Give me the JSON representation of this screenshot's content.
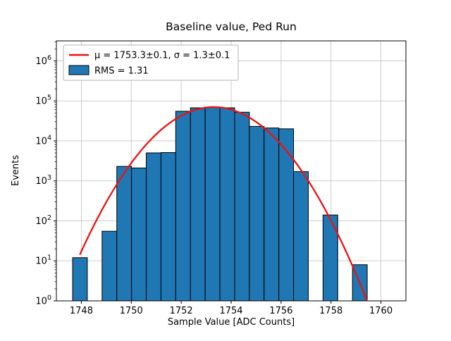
{
  "figure": {
    "title": "Baseline value, Ped Run",
    "xlabel": "Sample Value [ADC Counts]",
    "ylabel": "Events"
  },
  "chart_data": {
    "type": "bar",
    "subtype": "histogram-with-gaussian-fit",
    "title": "Baseline value, Ped Run",
    "xlabel": "Sample Value [ADC Counts]",
    "ylabel": "Events",
    "yscale": "log",
    "xlim": [
      1747.0,
      1761.0
    ],
    "ylim": [
      1,
      3162278
    ],
    "grid": true,
    "x_ticks": [
      1748,
      1750,
      1752,
      1754,
      1756,
      1758,
      1760
    ],
    "y_tick_exponents": [
      0,
      1,
      2,
      3,
      4,
      5,
      6
    ],
    "y_tick_labels": [
      "10⁰",
      "10¹",
      "10²",
      "10³",
      "10⁴",
      "10⁵",
      "10⁶"
    ],
    "bin_width": 0.59,
    "bars": [
      {
        "x0": 1747.65,
        "x1": 1748.24,
        "count": 12
      },
      {
        "x0": 1748.83,
        "x1": 1749.42,
        "count": 55
      },
      {
        "x0": 1749.42,
        "x1": 1750.01,
        "count": 2300
      },
      {
        "x0": 1750.01,
        "x1": 1750.6,
        "count": 2100
      },
      {
        "x0": 1750.6,
        "x1": 1751.19,
        "count": 5000
      },
      {
        "x0": 1751.19,
        "x1": 1751.78,
        "count": 5100
      },
      {
        "x0": 1751.78,
        "x1": 1752.37,
        "count": 55000
      },
      {
        "x0": 1752.37,
        "x1": 1752.96,
        "count": 67000
      },
      {
        "x0": 1752.96,
        "x1": 1753.55,
        "count": 70000
      },
      {
        "x0": 1753.55,
        "x1": 1754.14,
        "count": 67000
      },
      {
        "x0": 1754.14,
        "x1": 1754.73,
        "count": 52000
      },
      {
        "x0": 1754.73,
        "x1": 1755.32,
        "count": 23000
      },
      {
        "x0": 1755.32,
        "x1": 1755.91,
        "count": 21000
      },
      {
        "x0": 1755.91,
        "x1": 1756.5,
        "count": 20000
      },
      {
        "x0": 1756.5,
        "x1": 1757.09,
        "count": 1700
      },
      {
        "x0": 1757.68,
        "x1": 1758.27,
        "count": 140
      },
      {
        "x0": 1758.86,
        "x1": 1759.45,
        "count": 8
      }
    ],
    "fit": {
      "type": "gaussian",
      "mu": 1753.3,
      "mu_err": 0.1,
      "sigma": 1.3,
      "sigma_err": 0.1,
      "amplitude": 70000,
      "x_start": 1747.95,
      "x_end": 1759.45,
      "color": "#ee1111"
    },
    "legend": {
      "position": "upper-left",
      "entries": [
        {
          "swatch": "line",
          "color": "#ee1111",
          "label": "μ = 1753.3±0.1, σ = 1.3±0.1"
        },
        {
          "swatch": "patch",
          "color": "#1f77b4",
          "label": "RMS = 1.31"
        }
      ]
    },
    "stats": {
      "rms": 1.31
    },
    "colors": {
      "bar_fill": "#1f77b4",
      "bar_edge": "#000000",
      "fit_line": "#ee1111",
      "grid": "#c6c6c6",
      "background": "#ffffff",
      "spine": "#000000"
    }
  }
}
